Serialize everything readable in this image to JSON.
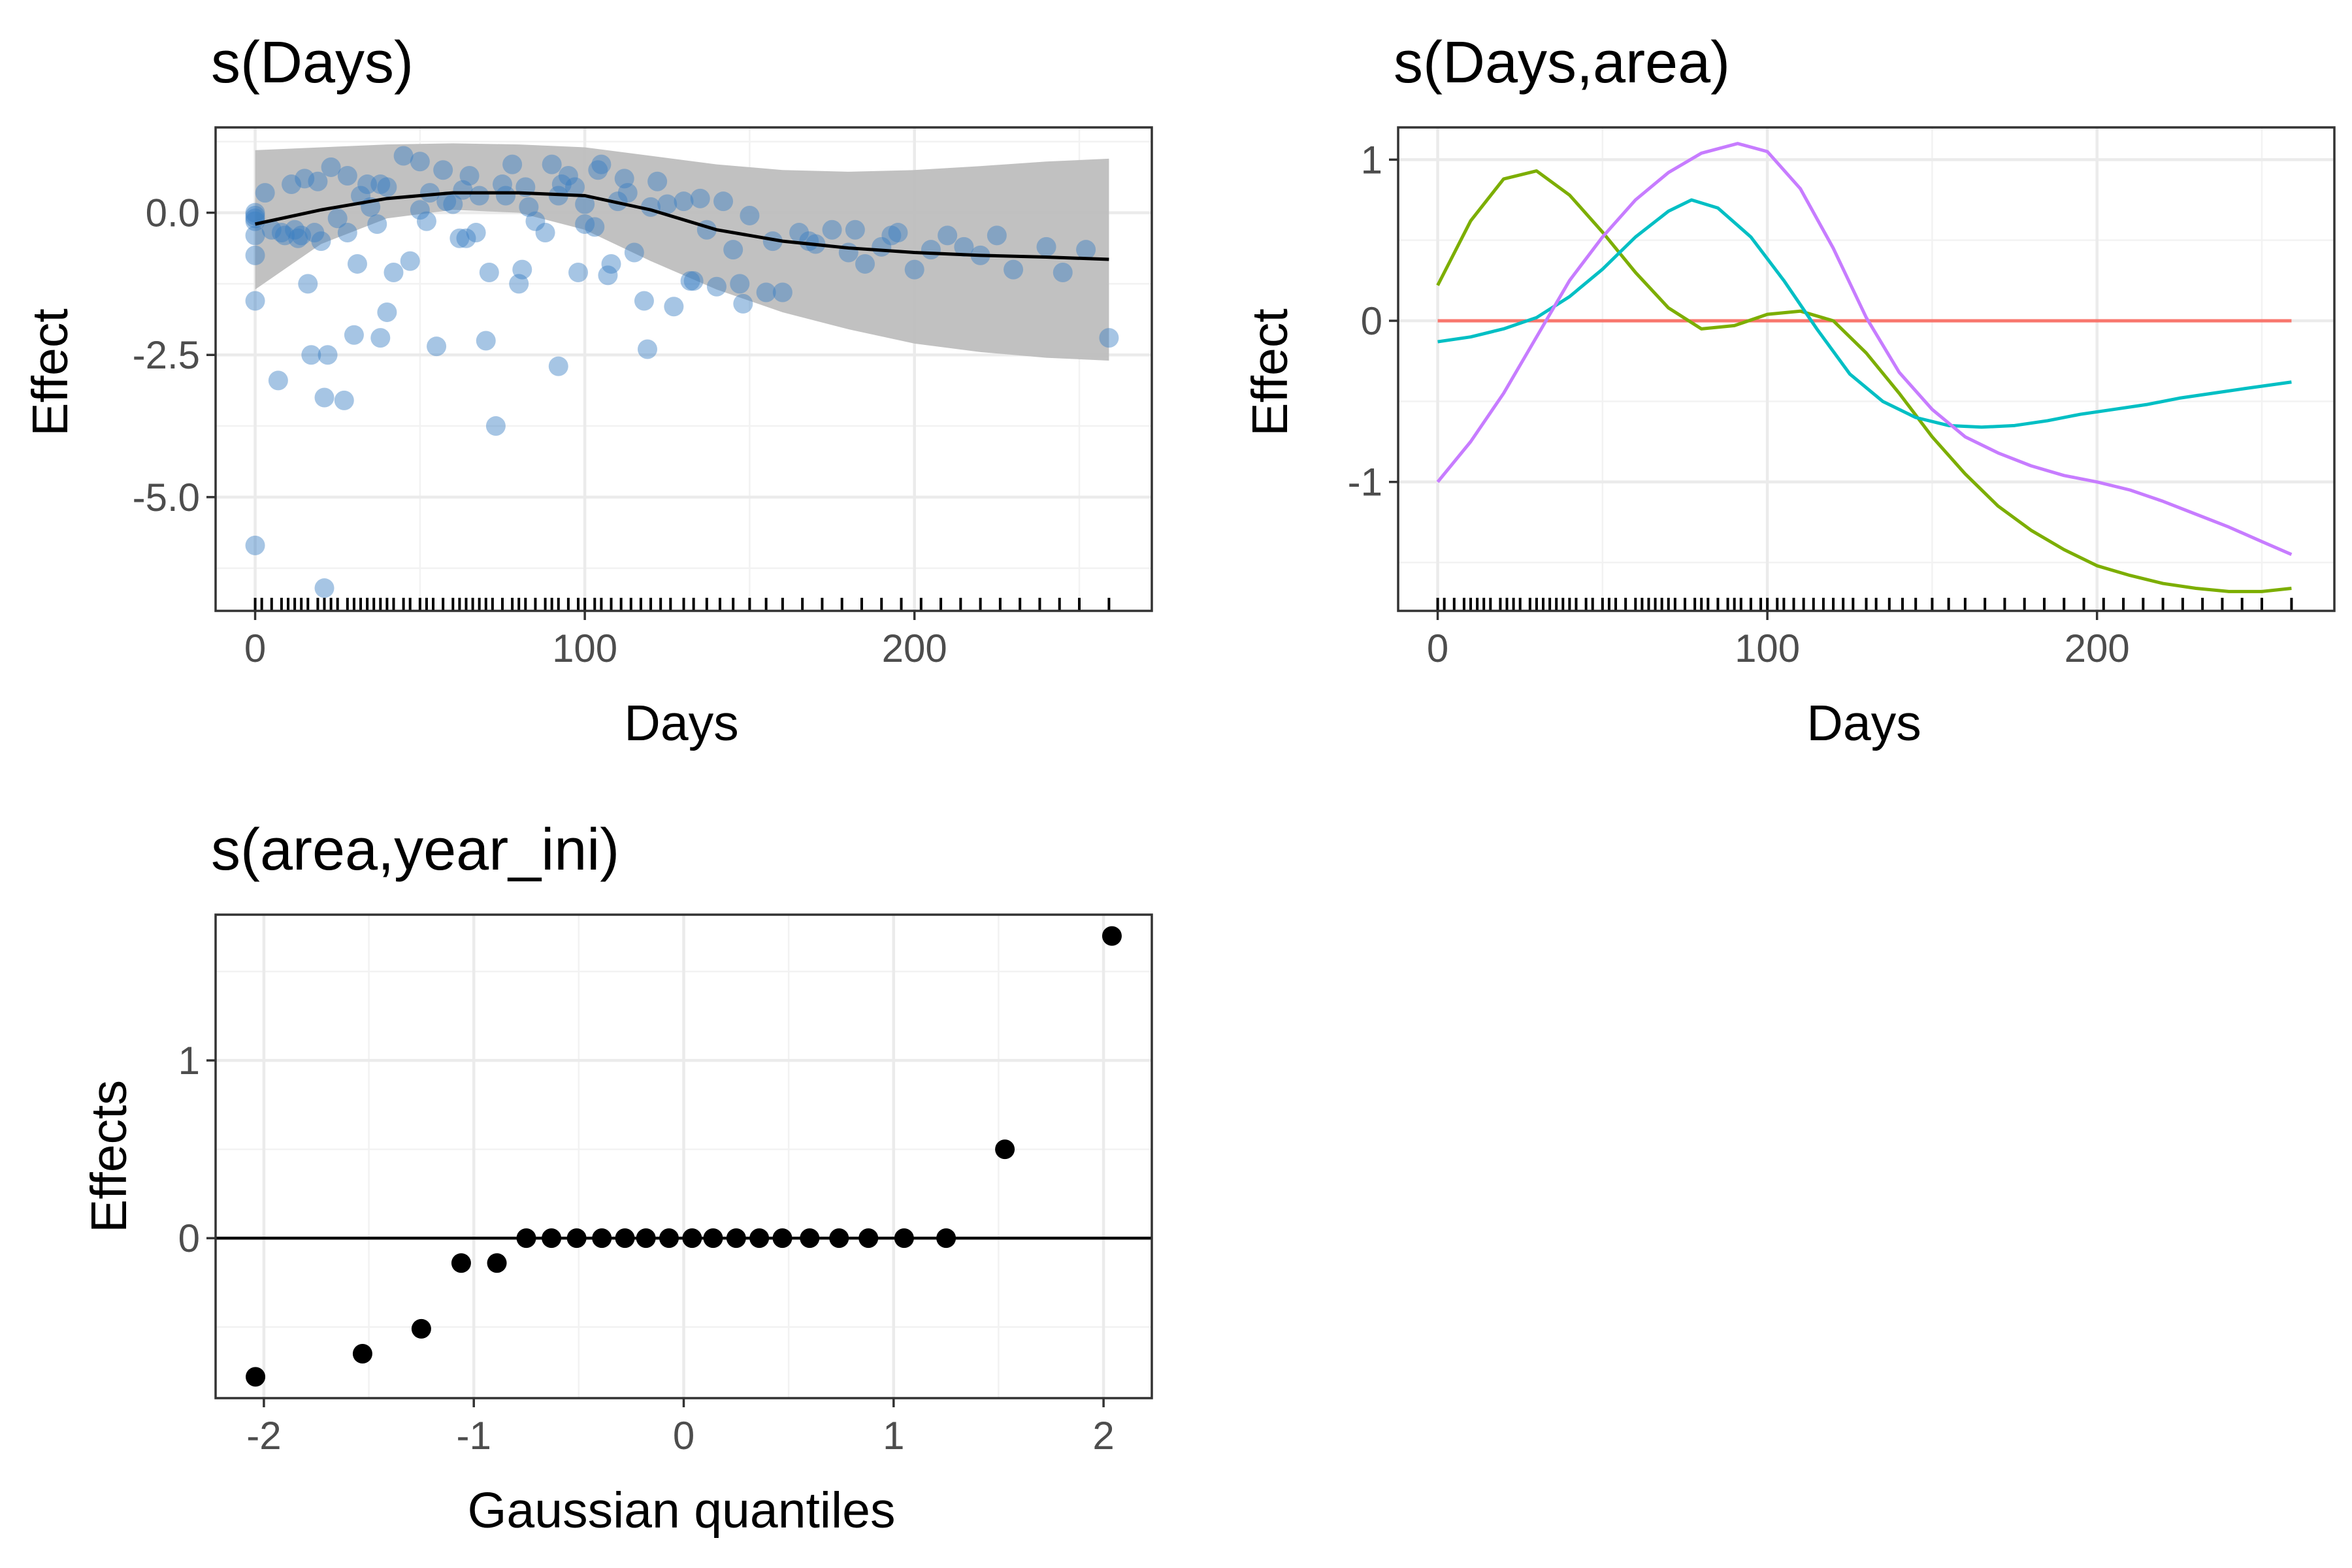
{
  "chart_data": [
    {
      "id": "panel1",
      "type": "line",
      "title": "s(Days)",
      "xlabel": "Days",
      "ylabel": "Effect",
      "xlim": [
        -12,
        272
      ],
      "ylim": [
        -7.0,
        1.5
      ],
      "x_ticks": [
        0,
        100,
        200
      ],
      "x_tick_labels": [
        "0",
        "100",
        "200"
      ],
      "y_ticks": [
        0.0,
        -2.5,
        -5.0
      ],
      "y_tick_labels": [
        "0.0",
        "-2.5",
        "-5.0"
      ],
      "grid": true,
      "colors": {
        "points": "#3a7fc4",
        "line": "#000000",
        "ribbon": "#bebebe"
      },
      "series": [
        {
          "kind": "ribbon",
          "x": [
            0,
            20,
            40,
            60,
            80,
            100,
            120,
            140,
            160,
            180,
            200,
            220,
            240,
            259
          ],
          "lower": [
            -1.35,
            -0.55,
            -0.1,
            0.05,
            0.0,
            -0.3,
            -0.85,
            -1.35,
            -1.75,
            -2.05,
            -2.3,
            -2.45,
            -2.55,
            -2.6
          ],
          "upper": [
            1.1,
            1.15,
            1.2,
            1.22,
            1.2,
            1.15,
            1.0,
            0.85,
            0.75,
            0.72,
            0.75,
            0.82,
            0.9,
            0.95
          ]
        },
        {
          "kind": "line",
          "x": [
            0,
            20,
            40,
            60,
            80,
            100,
            120,
            140,
            160,
            180,
            200,
            220,
            240,
            259
          ],
          "y": [
            -0.2,
            0.05,
            0.25,
            0.35,
            0.35,
            0.3,
            0.05,
            -0.3,
            -0.5,
            -0.62,
            -0.7,
            -0.75,
            -0.78,
            -0.82
          ]
        },
        {
          "kind": "points",
          "x": [
            0,
            0,
            0,
            0,
            0,
            0,
            0,
            0,
            3,
            5,
            7,
            8,
            9,
            11,
            12,
            13,
            14,
            15,
            16,
            17,
            18,
            19,
            20,
            21,
            21,
            22,
            23,
            25,
            27,
            28,
            28,
            30,
            31,
            32,
            34,
            35,
            37,
            38,
            38,
            40,
            40,
            42,
            45,
            47,
            50,
            50,
            52,
            53,
            55,
            57,
            58,
            60,
            62,
            63,
            64,
            65,
            67,
            68,
            70,
            71,
            73,
            75,
            76,
            78,
            80,
            81,
            82,
            83,
            85,
            88,
            90,
            92,
            92,
            93,
            95,
            97,
            98,
            100,
            100,
            103,
            104,
            105,
            107,
            108,
            110,
            112,
            113,
            115,
            118,
            119,
            120,
            122,
            125,
            127,
            130,
            132,
            133,
            135,
            137,
            140,
            142,
            145,
            147,
            148,
            150,
            155,
            157,
            160,
            165,
            168,
            170,
            175,
            180,
            182,
            185,
            190,
            193,
            195,
            200,
            205,
            210,
            215,
            220,
            225,
            230,
            240,
            245,
            252,
            259
          ],
          "y": [
            -0.05,
            0.0,
            -0.1,
            -0.4,
            -0.75,
            -1.55,
            -5.85,
            -0.15,
            0.35,
            -0.3,
            -2.95,
            -0.35,
            -0.4,
            0.5,
            -0.3,
            -0.45,
            -0.4,
            0.6,
            -1.25,
            -2.5,
            -0.35,
            0.55,
            -0.5,
            -6.6,
            -3.25,
            -2.5,
            0.8,
            -0.1,
            -3.3,
            -0.35,
            0.65,
            -2.15,
            -0.9,
            0.3,
            0.5,
            0.1,
            -0.2,
            0.5,
            -2.2,
            0.45,
            -1.75,
            -1.05,
            1.0,
            -0.85,
            0.05,
            0.9,
            -0.15,
            0.35,
            -2.35,
            0.75,
            0.2,
            0.15,
            -0.45,
            0.4,
            -0.45,
            0.65,
            -0.35,
            0.3,
            -2.25,
            -1.05,
            -3.75,
            0.5,
            0.3,
            0.85,
            -1.25,
            -1.0,
            0.45,
            0.1,
            -0.15,
            -0.35,
            0.85,
            -2.7,
            0.3,
            0.5,
            0.65,
            0.45,
            -1.05,
            -0.2,
            0.15,
            -0.25,
            0.75,
            0.85,
            -1.1,
            -0.9,
            0.2,
            0.6,
            0.35,
            -0.7,
            -1.55,
            -2.4,
            0.1,
            0.55,
            0.15,
            -1.65,
            0.2,
            -1.2,
            -1.2,
            0.25,
            -0.3,
            -1.3,
            0.2,
            -0.65,
            -1.25,
            -1.6,
            -0.05,
            -1.4,
            -0.5,
            -1.4,
            -0.35,
            -0.5,
            -0.55,
            -0.3,
            -0.7,
            -0.3,
            -0.9,
            -0.6,
            -0.4,
            -0.35,
            -1.0,
            -0.65,
            -0.4,
            -0.6,
            -0.75,
            -0.4,
            -1.0,
            -0.6,
            -1.05,
            -0.65,
            -2.2
          ]
        }
      ],
      "rug_x": [
        0,
        2,
        5,
        8,
        10,
        12,
        14,
        16,
        19,
        21,
        23,
        25,
        28,
        30,
        32,
        34,
        36,
        38,
        40,
        42,
        45,
        47,
        50,
        52,
        54,
        57,
        60,
        62,
        64,
        66,
        68,
        70,
        72,
        75,
        78,
        80,
        82,
        85,
        88,
        90,
        92,
        95,
        98,
        100,
        103,
        105,
        108,
        111,
        114,
        117,
        120,
        123,
        126,
        130,
        133,
        137,
        141,
        145,
        150,
        155,
        160,
        166,
        172,
        178,
        184,
        190,
        196,
        202,
        208,
        214,
        220,
        226,
        232,
        238,
        244,
        250,
        259
      ]
    },
    {
      "id": "panel2",
      "type": "line",
      "title": "s(Days,area)",
      "xlabel": "Days",
      "ylabel": "Effect",
      "xlim": [
        -12,
        272
      ],
      "ylim": [
        -1.8,
        1.2
      ],
      "x_ticks": [
        0,
        100,
        200
      ],
      "x_tick_labels": [
        "0",
        "100",
        "200"
      ],
      "y_ticks": [
        1,
        0,
        -1
      ],
      "y_tick_labels": [
        "1",
        "0",
        "-1"
      ],
      "grid": true,
      "series": [
        {
          "color": "#f8766d",
          "x": [
            0,
            259
          ],
          "y": [
            0.0,
            0.0
          ]
        },
        {
          "color": "#7cae00",
          "x": [
            0,
            10,
            20,
            30,
            40,
            50,
            60,
            70,
            80,
            90,
            100,
            110,
            120,
            130,
            140,
            150,
            160,
            170,
            180,
            190,
            200,
            210,
            220,
            230,
            240,
            250,
            259
          ],
          "y": [
            0.22,
            0.62,
            0.88,
            0.93,
            0.78,
            0.55,
            0.3,
            0.08,
            -0.05,
            -0.03,
            0.04,
            0.06,
            0.0,
            -0.2,
            -0.45,
            -0.72,
            -0.95,
            -1.15,
            -1.3,
            -1.42,
            -1.52,
            -1.58,
            -1.63,
            -1.66,
            -1.68,
            -1.68,
            -1.66
          ]
        },
        {
          "color": "#00bfc4",
          "x": [
            0,
            10,
            20,
            30,
            40,
            50,
            60,
            70,
            77,
            85,
            95,
            105,
            115,
            125,
            135,
            145,
            155,
            165,
            175,
            185,
            195,
            205,
            215,
            225,
            235,
            245,
            259
          ],
          "y": [
            -0.13,
            -0.1,
            -0.05,
            0.02,
            0.15,
            0.32,
            0.52,
            0.68,
            0.75,
            0.7,
            0.52,
            0.25,
            -0.05,
            -0.33,
            -0.5,
            -0.6,
            -0.65,
            -0.66,
            -0.65,
            -0.62,
            -0.58,
            -0.55,
            -0.52,
            -0.48,
            -0.45,
            -0.42,
            -0.38
          ]
        },
        {
          "color": "#c77cff",
          "x": [
            0,
            10,
            20,
            30,
            40,
            50,
            60,
            70,
            80,
            91,
            100,
            110,
            120,
            130,
            140,
            150,
            160,
            170,
            180,
            190,
            200,
            210,
            220,
            230,
            240,
            250,
            259
          ],
          "y": [
            -1.0,
            -0.75,
            -0.45,
            -0.1,
            0.25,
            0.52,
            0.75,
            0.92,
            1.04,
            1.1,
            1.05,
            0.82,
            0.45,
            0.02,
            -0.32,
            -0.55,
            -0.72,
            -0.82,
            -0.9,
            -0.96,
            -1.0,
            -1.05,
            -1.12,
            -1.2,
            -1.28,
            -1.37,
            -1.45
          ]
        }
      ],
      "rug_x": [
        0,
        2,
        5,
        8,
        10,
        12,
        14,
        16,
        19,
        21,
        23,
        25,
        28,
        30,
        32,
        34,
        36,
        38,
        40,
        42,
        45,
        47,
        50,
        52,
        54,
        57,
        60,
        62,
        64,
        66,
        68,
        70,
        72,
        75,
        78,
        80,
        82,
        85,
        88,
        90,
        92,
        95,
        98,
        100,
        103,
        105,
        108,
        111,
        114,
        117,
        120,
        123,
        126,
        130,
        133,
        137,
        141,
        145,
        150,
        155,
        160,
        166,
        172,
        178,
        184,
        190,
        196,
        202,
        208,
        214,
        220,
        226,
        232,
        238,
        244,
        250,
        259
      ]
    },
    {
      "id": "panel3",
      "type": "scatter",
      "title": "s(area,year_ini)",
      "xlabel": "Gaussian quantiles",
      "ylabel": "Effects",
      "xlim": [
        -2.23,
        2.23
      ],
      "ylim": [
        -0.9,
        1.82
      ],
      "x_ticks": [
        -2,
        -1,
        0,
        1,
        2
      ],
      "x_tick_labels": [
        "-2",
        "-1",
        "0",
        "1",
        "2"
      ],
      "y_ticks": [
        1,
        0
      ],
      "y_tick_labels": [
        "1",
        "0"
      ],
      "grid": true,
      "reference_line_y": 0,
      "x": [
        -2.04,
        -1.53,
        -1.25,
        -1.06,
        -0.89,
        -0.75,
        -0.63,
        -0.51,
        -0.39,
        -0.28,
        -0.18,
        -0.07,
        0.04,
        0.14,
        0.25,
        0.36,
        0.47,
        0.6,
        0.74,
        0.88,
        1.05,
        1.25,
        1.53,
        2.04
      ],
      "y": [
        -0.78,
        -0.65,
        -0.51,
        -0.14,
        -0.14,
        0.0,
        0.0,
        0.0,
        0.0,
        0.0,
        0.0,
        0.0,
        0.0,
        0.0,
        0.0,
        0.0,
        0.0,
        0.0,
        0.0,
        0.0,
        0.0,
        0.0,
        0.5,
        1.7
      ]
    }
  ]
}
